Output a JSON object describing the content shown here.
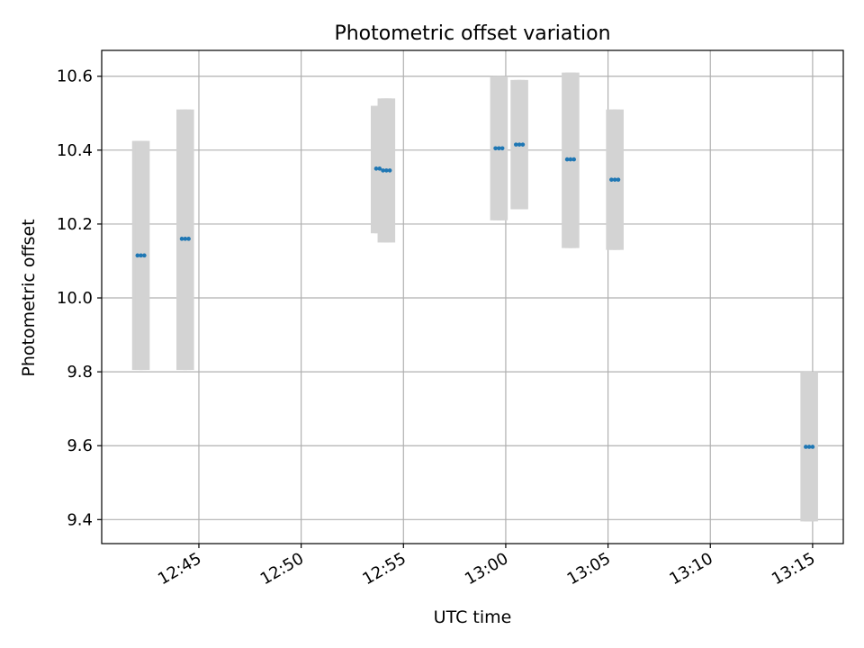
{
  "chart_data": {
    "type": "scatter",
    "title": "Photometric offset variation",
    "xlabel": "UTC time",
    "ylabel": "Photometric offset",
    "x_ticks": [
      "12:45",
      "12:50",
      "12:55",
      "13:00",
      "13:05",
      "13:10",
      "13:15"
    ],
    "y_ticks": [
      "9.4",
      "9.6",
      "9.8",
      "10.0",
      "10.2",
      "10.4",
      "10.6"
    ],
    "xlim": [
      "12:40:15",
      "13:16:30"
    ],
    "ylim": [
      9.335,
      10.67
    ],
    "grid": true,
    "series": [
      {
        "style": "errorbar",
        "error_color": "#d3d3d3",
        "marker_color": "#1f77b4",
        "points": [
          {
            "x": [
              "12:42:00",
              "12:42:10",
              "12:42:20"
            ],
            "y": [
              10.115,
              10.115,
              10.115
            ],
            "err_low": 9.805,
            "err_high": 10.425
          },
          {
            "x": [
              "12:44:10",
              "12:44:20",
              "12:44:30"
            ],
            "y": [
              10.16,
              10.16,
              10.16
            ],
            "err_low": 9.805,
            "err_high": 10.51
          },
          {
            "x": [
              "12:53:40",
              "12:53:50"
            ],
            "y": [
              10.35,
              10.35
            ],
            "err_low": 10.175,
            "err_high": 10.52
          },
          {
            "x": [
              "12:54:00",
              "12:54:10",
              "12:54:20"
            ],
            "y": [
              10.345,
              10.345,
              10.345
            ],
            "err_low": 10.15,
            "err_high": 10.54
          },
          {
            "x": [
              "12:59:30",
              "12:59:40",
              "12:59:50"
            ],
            "y": [
              10.405,
              10.405,
              10.405
            ],
            "err_low": 10.21,
            "err_high": 10.6
          },
          {
            "x": [
              "13:00:30",
              "13:00:40",
              "13:00:50"
            ],
            "y": [
              10.415,
              10.415,
              10.415
            ],
            "err_low": 10.24,
            "err_high": 10.59
          },
          {
            "x": [
              "13:03:00",
              "13:03:10",
              "13:03:20"
            ],
            "y": [
              10.375,
              10.375,
              10.375
            ],
            "err_low": 10.135,
            "err_high": 10.61
          },
          {
            "x": [
              "13:05:10",
              "13:05:20",
              "13:05:30"
            ],
            "y": [
              10.32,
              10.32,
              10.32
            ],
            "err_low": 10.13,
            "err_high": 10.51
          },
          {
            "x": [
              "13:14:40",
              "13:14:50",
              "13:15:00"
            ],
            "y": [
              9.597,
              9.597,
              9.597
            ],
            "err_low": 9.395,
            "err_high": 9.8
          }
        ]
      }
    ]
  }
}
